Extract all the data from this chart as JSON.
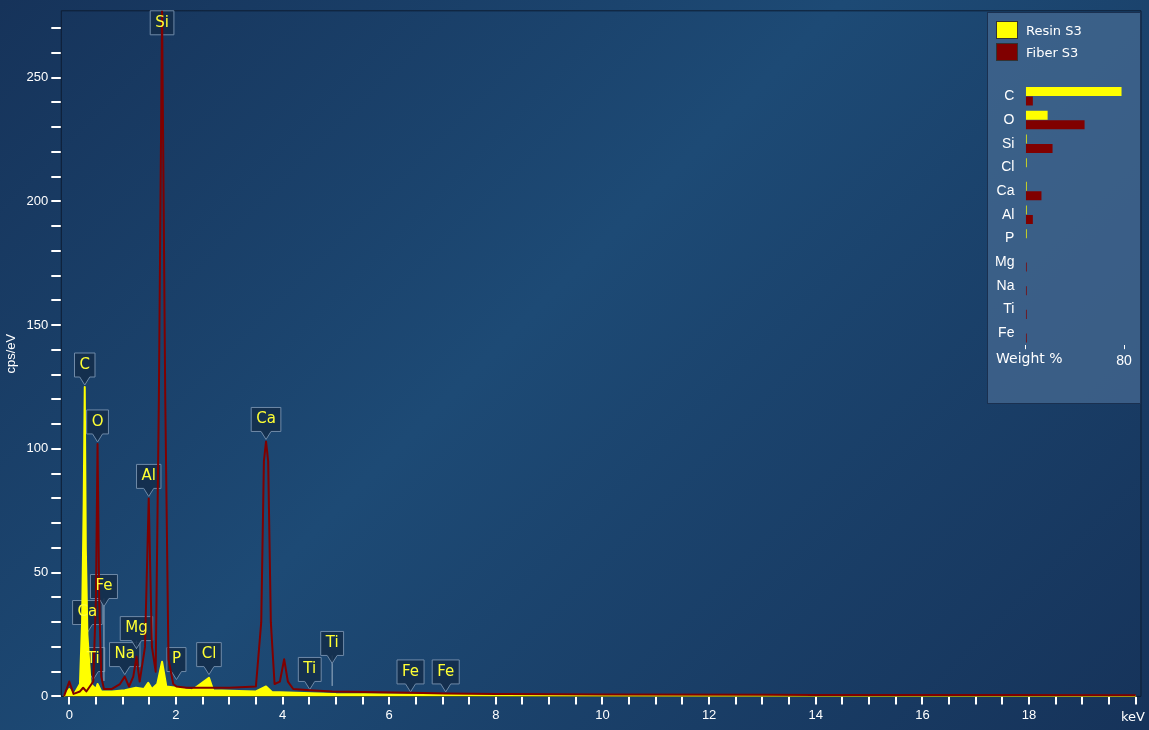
{
  "chart_data": [
    {
      "type": "line",
      "xlabel": "keV",
      "ylabel": "cps/eV",
      "xlim": [
        -0.15,
        20.1
      ],
      "ylim": [
        0,
        277
      ],
      "xticks": [
        {
          "value": 0,
          "label": "0"
        },
        {
          "value": 0.5,
          "label": null
        },
        {
          "value": 1,
          "label": null
        },
        {
          "value": 1.5,
          "label": null
        },
        {
          "value": 2,
          "label": "2"
        },
        {
          "value": 2.5,
          "label": null
        },
        {
          "value": 3,
          "label": null
        },
        {
          "value": 3.5,
          "label": null
        },
        {
          "value": 4,
          "label": "4"
        },
        {
          "value": 4.5,
          "label": null
        },
        {
          "value": 5,
          "label": null
        },
        {
          "value": 5.5,
          "label": null
        },
        {
          "value": 6,
          "label": "6"
        },
        {
          "value": 6.5,
          "label": null
        },
        {
          "value": 7,
          "label": null
        },
        {
          "value": 7.5,
          "label": null
        },
        {
          "value": 8,
          "label": "8"
        },
        {
          "value": 8.5,
          "label": null
        },
        {
          "value": 9,
          "label": null
        },
        {
          "value": 9.5,
          "label": null
        },
        {
          "value": 10,
          "label": "10"
        },
        {
          "value": 10.5,
          "label": null
        },
        {
          "value": 11,
          "label": null
        },
        {
          "value": 11.5,
          "label": null
        },
        {
          "value": 12,
          "label": "12"
        },
        {
          "value": 12.5,
          "label": null
        },
        {
          "value": 13,
          "label": null
        },
        {
          "value": 13.5,
          "label": null
        },
        {
          "value": 14,
          "label": "14"
        },
        {
          "value": 14.5,
          "label": null
        },
        {
          "value": 15,
          "label": null
        },
        {
          "value": 15.5,
          "label": null
        },
        {
          "value": 16,
          "label": "16"
        },
        {
          "value": 16.5,
          "label": null
        },
        {
          "value": 17,
          "label": null
        },
        {
          "value": 17.5,
          "label": null
        },
        {
          "value": 18,
          "label": "18"
        },
        {
          "value": 18.5,
          "label": null
        },
        {
          "value": 19,
          "label": null
        },
        {
          "value": 19.5,
          "label": null
        },
        {
          "value": 20,
          "label": null
        }
      ],
      "yticks": [
        0,
        {
          "value": 10,
          "label": null
        },
        {
          "value": 20,
          "label": null
        },
        {
          "value": 30,
          "label": null
        },
        {
          "value": 40,
          "label": null
        },
        50,
        {
          "value": 60,
          "label": null
        },
        {
          "value": 70,
          "label": null
        },
        {
          "value": 80,
          "label": null
        },
        {
          "value": 90,
          "label": null
        },
        100,
        {
          "value": 110,
          "label": null
        },
        {
          "value": 120,
          "label": null
        },
        {
          "value": 130,
          "label": null
        },
        {
          "value": 140,
          "label": null
        },
        150,
        {
          "value": 160,
          "label": null
        },
        {
          "value": 170,
          "label": null
        },
        {
          "value": 180,
          "label": null
        },
        {
          "value": 190,
          "label": null
        },
        200,
        {
          "value": 210,
          "label": null
        },
        {
          "value": 220,
          "label": null
        },
        {
          "value": 230,
          "label": null
        },
        {
          "value": 240,
          "label": null
        },
        250,
        {
          "value": 260,
          "label": null
        },
        {
          "value": 270,
          "label": null
        }
      ],
      "grid": false,
      "legend": "top right",
      "series": [
        {
          "name": "Resin S3",
          "type": "area",
          "color": "#ffff00",
          "x": [
            -0.1,
            0,
            0.08,
            0.2,
            0.24,
            0.27,
            0.29,
            0.31,
            0.34,
            0.4,
            0.5,
            0.53,
            0.6,
            0.8,
            1.04,
            1.25,
            1.4,
            1.48,
            1.55,
            1.65,
            1.74,
            1.82,
            2.01,
            2.3,
            2.62,
            2.7,
            3.5,
            3.69,
            3.8,
            5,
            8,
            12,
            20
          ],
          "values": [
            0,
            3,
            0.5,
            5,
            30,
            78,
            125,
            60,
            25,
            5,
            3,
            5,
            2,
            2,
            2.5,
            3.5,
            3,
            5.5,
            3,
            5,
            14,
            4,
            3.5,
            2.5,
            7.5,
            2.5,
            2,
            4,
            1.8,
            1,
            0.5,
            0.3,
            0.2
          ]
        },
        {
          "name": "Fiber S3",
          "type": "line",
          "color": "#800000",
          "x": [
            -0.1,
            0,
            0.08,
            0.2,
            0.26,
            0.32,
            0.45,
            0.5,
            0.53,
            0.56,
            0.6,
            0.65,
            0.8,
            0.95,
            1.04,
            1.12,
            1.2,
            1.26,
            1.32,
            1.42,
            1.49,
            1.55,
            1.62,
            1.68,
            1.74,
            1.8,
            1.86,
            1.95,
            2.01,
            2.2,
            2.62,
            3,
            3.5,
            3.6,
            3.65,
            3.69,
            3.73,
            3.78,
            3.85,
            3.95,
            4.03,
            4.1,
            4.2,
            4.51,
            4.93,
            6.4,
            7.06,
            8,
            10,
            14,
            20
          ],
          "values": [
            0,
            6,
            1,
            2,
            3.5,
            2,
            6,
            40,
            102,
            40,
            8,
            3,
            3,
            5,
            8,
            4,
            8,
            16,
            6,
            20,
            80,
            20,
            10,
            120,
            277,
            120,
            15,
            5,
            4,
            3.5,
            3.5,
            3.5,
            4,
            30,
            95,
            103,
            95,
            30,
            5,
            6,
            15,
            6,
            3,
            2.5,
            2,
            1.5,
            1.2,
            1,
            0.8,
            0.6,
            0.5
          ]
        }
      ],
      "annotations": [
        {
          "text": "Si",
          "x": 1.74,
          "y": 277
        },
        {
          "text": "C",
          "x": 0.29,
          "y": 125
        },
        {
          "text": "O",
          "x": 0.53,
          "y": 102
        },
        {
          "text": "Al",
          "x": 1.49,
          "y": 80
        },
        {
          "text": "Ca",
          "x": 3.69,
          "y": 103
        },
        {
          "text": "Ca",
          "x": 0.34,
          "y": 25
        },
        {
          "text": "Ti",
          "x": 0.45,
          "y": 6
        },
        {
          "text": "Fe",
          "x": 0.65,
          "y": 3
        },
        {
          "text": "Na",
          "x": 1.04,
          "y": 8
        },
        {
          "text": "Mg",
          "x": 1.26,
          "y": 16
        },
        {
          "text": "P",
          "x": 2.01,
          "y": 6
        },
        {
          "text": "Cl",
          "x": 2.62,
          "y": 8
        },
        {
          "text": "Ti",
          "x": 4.51,
          "y": 2
        },
        {
          "text": "Ti",
          "x": 4.93,
          "y": 1
        },
        {
          "text": "Fe",
          "x": 6.4,
          "y": 1
        },
        {
          "text": "Fe",
          "x": 7.06,
          "y": 1
        }
      ]
    },
    {
      "type": "bar",
      "orientation": "horizontal",
      "xlabel": "Weight %",
      "xlim": [
        0,
        80
      ],
      "xticks": [
        {
          "value": 0,
          "label": null
        },
        80
      ],
      "categories": [
        "C",
        "O",
        "Si",
        "Cl",
        "Ca",
        "Al",
        "P",
        "Mg",
        "Na",
        "Ti",
        "Fe"
      ],
      "series": [
        {
          "color": "#ffff00",
          "values": [
            78,
            18,
            1,
            1,
            1,
            1,
            1,
            null,
            null,
            null,
            null
          ]
        },
        {
          "color": "#800000",
          "values": [
            6,
            48,
            22,
            null,
            13,
            6,
            null,
            1,
            1,
            1,
            1
          ]
        }
      ]
    }
  ]
}
